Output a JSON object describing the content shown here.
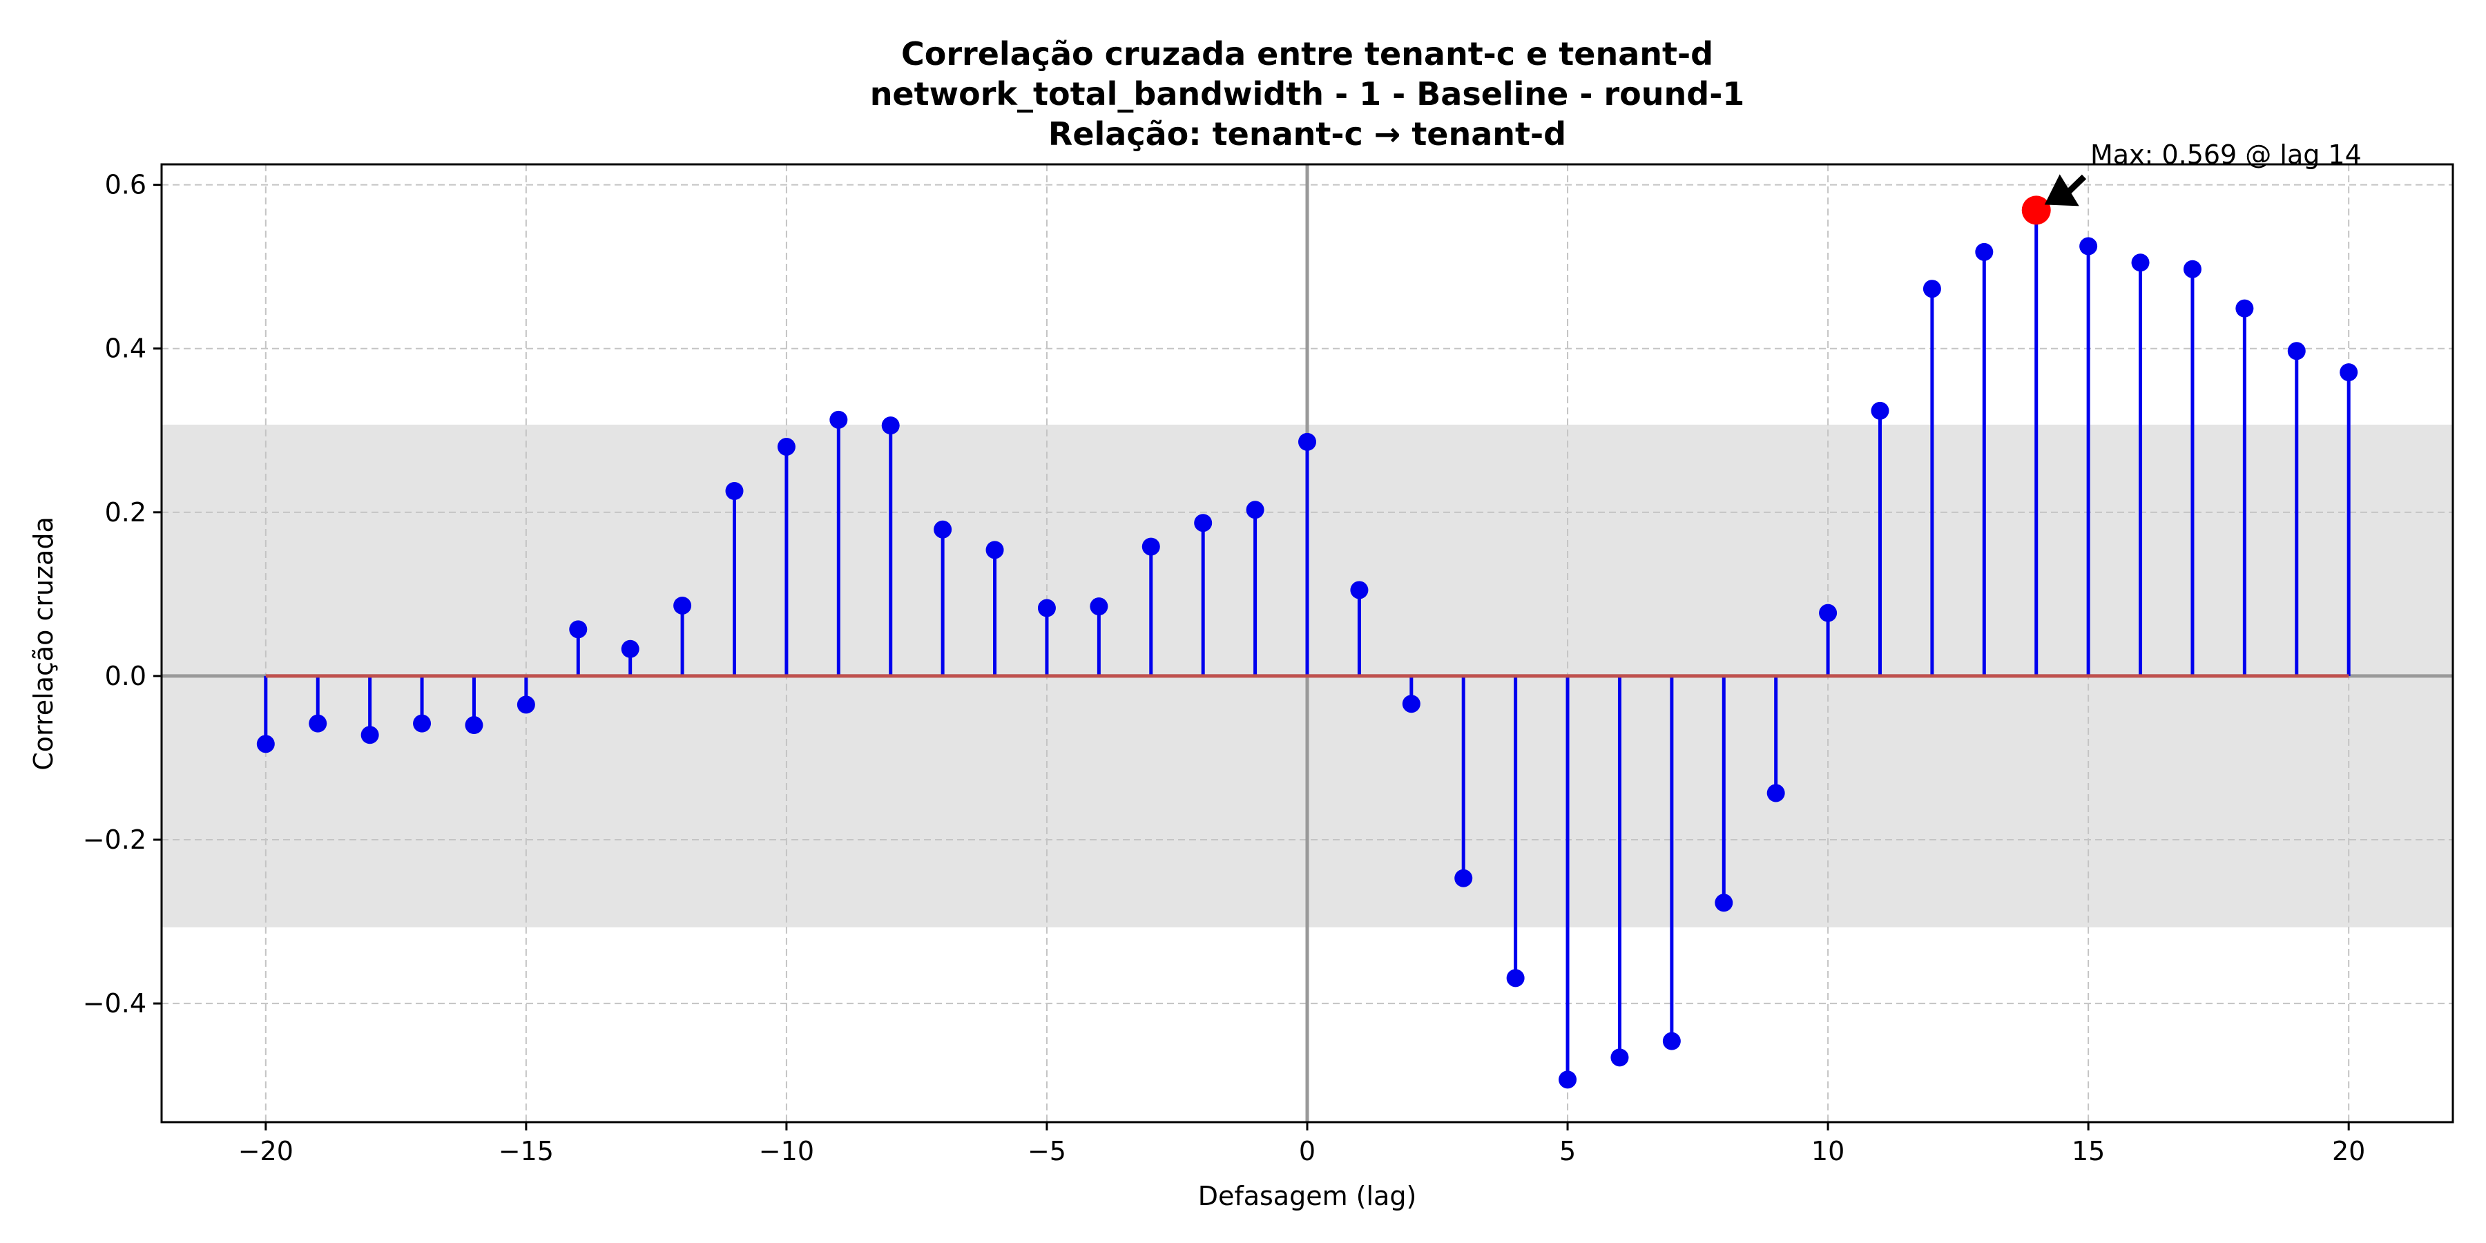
{
  "chart_data": {
    "type": "stem",
    "title_lines": [
      "Correlação cruzada entre tenant-c e tenant-d",
      "network_total_bandwidth - 1 - Baseline - round-1",
      "Relação: tenant-c → tenant-d"
    ],
    "xlabel": "Defasagem (lag)",
    "ylabel": "Correlação cruzada",
    "xlim": [
      -22,
      22
    ],
    "ylim": [
      -0.545,
      0.625
    ],
    "xticks": [
      -20,
      -15,
      -10,
      -5,
      0,
      5,
      10,
      15,
      20
    ],
    "xtick_labels": [
      "−20",
      "−15",
      "−10",
      "−5",
      "0",
      "5",
      "10",
      "15",
      "20"
    ],
    "yticks": [
      -0.4,
      -0.2,
      0.0,
      0.2,
      0.4,
      0.6
    ],
    "ytick_labels": [
      "−0.4",
      "−0.2",
      "0.0",
      "0.2",
      "0.4",
      "0.6"
    ],
    "grid": true,
    "confidence_band": [
      -0.307,
      0.307
    ],
    "x": [
      -20,
      -19,
      -18,
      -17,
      -16,
      -15,
      -14,
      -13,
      -12,
      -11,
      -10,
      -9,
      -8,
      -7,
      -6,
      -5,
      -4,
      -3,
      -2,
      -1,
      0,
      1,
      2,
      3,
      4,
      5,
      6,
      7,
      8,
      9,
      10,
      11,
      12,
      13,
      14,
      15,
      16,
      17,
      18,
      19,
      20
    ],
    "values": [
      -0.083,
      -0.058,
      -0.072,
      -0.058,
      -0.06,
      -0.035,
      0.057,
      0.033,
      0.086,
      0.226,
      0.28,
      0.313,
      0.306,
      0.179,
      0.154,
      0.083,
      0.085,
      0.158,
      0.187,
      0.203,
      0.286,
      0.105,
      -0.034,
      -0.247,
      -0.369,
      -0.493,
      -0.466,
      -0.446,
      -0.277,
      -0.143,
      0.077,
      0.324,
      0.473,
      0.518,
      0.569,
      0.525,
      0.505,
      0.497,
      0.449,
      0.397,
      0.371
    ],
    "colors": {
      "stem": "#0000ee",
      "baseline": "#c0504d",
      "max_marker": "#ff0000",
      "band": "#e4e4e4",
      "zero_lines": "#999999",
      "grid": "#c4c4c4"
    },
    "annotation": {
      "text": "Max: 0.569 @ lag 14",
      "x": 14,
      "y": 0.569
    }
  }
}
